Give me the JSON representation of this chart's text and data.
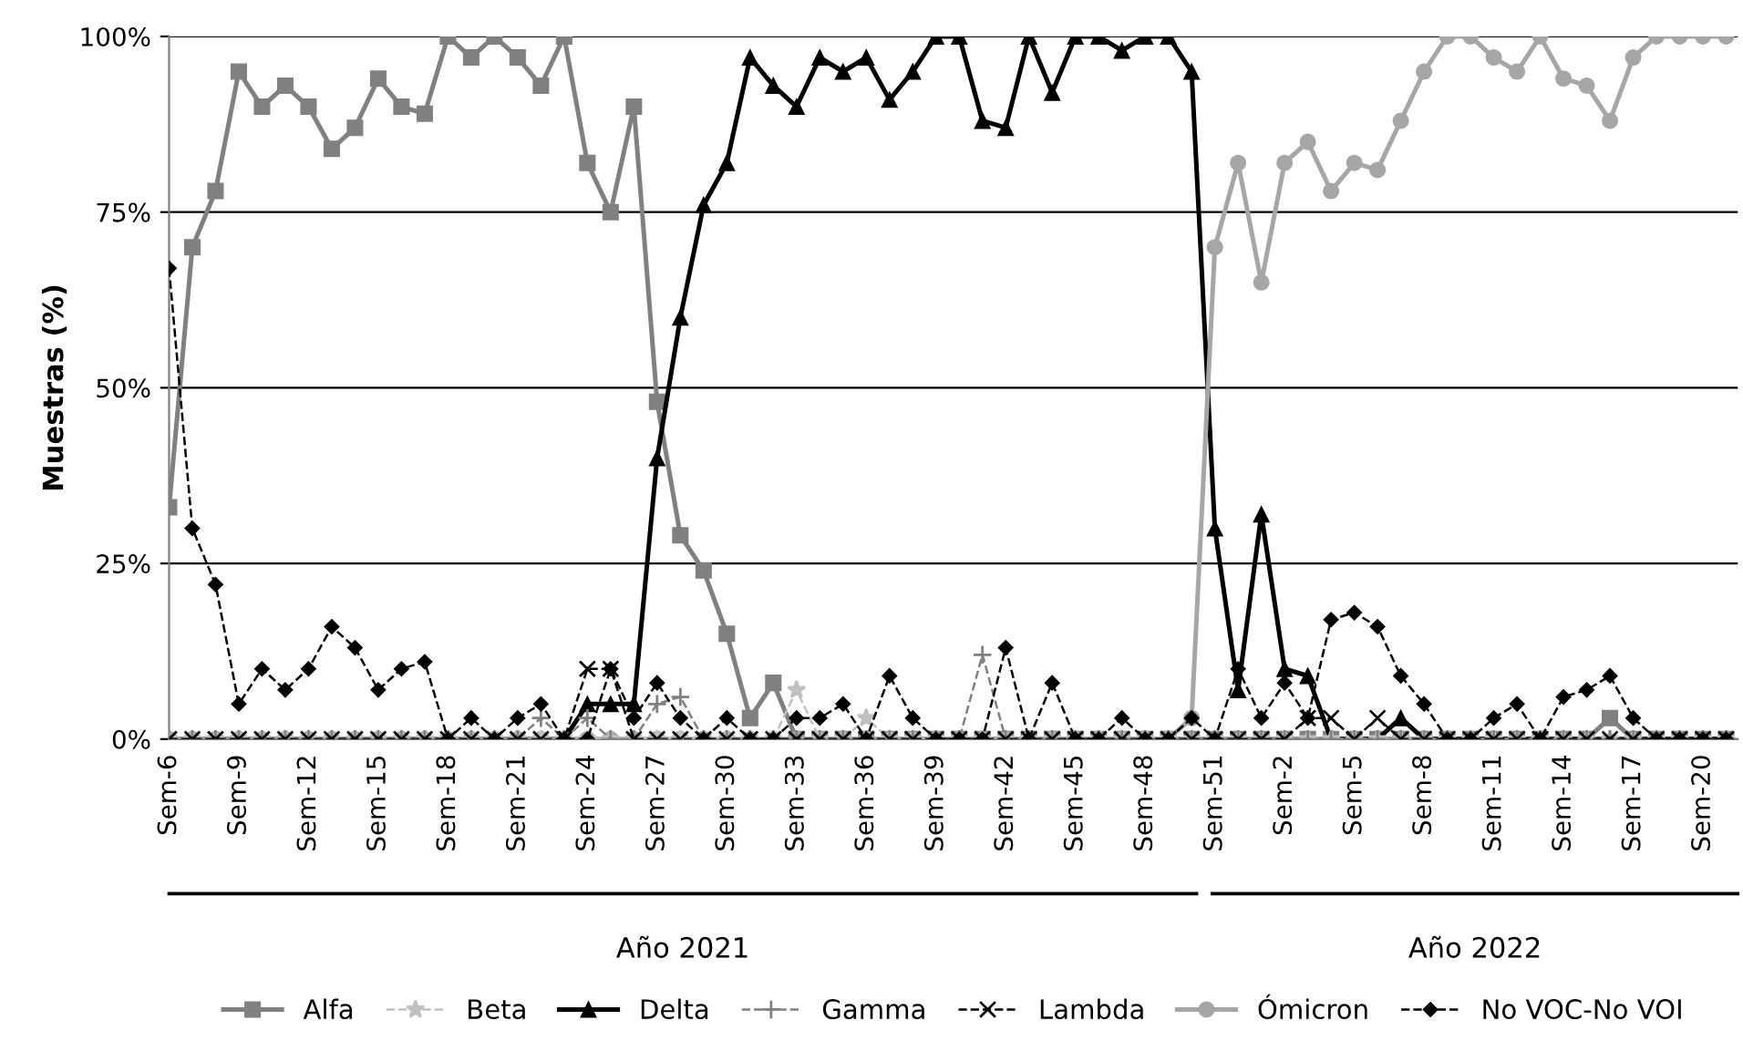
{
  "chart_data": {
    "type": "line",
    "ylabel": "Muestras (%)",
    "categories": [
      "Sem-6",
      null,
      null,
      "Sem-9",
      null,
      null,
      "Sem-12",
      null,
      null,
      "Sem-15",
      null,
      null,
      "Sem-18",
      null,
      null,
      "Sem-21",
      null,
      null,
      "Sem-24",
      null,
      null,
      "Sem-27",
      null,
      null,
      "Sem-30",
      null,
      null,
      "Sem-33",
      null,
      null,
      "Sem-36",
      null,
      null,
      "Sem-39",
      null,
      null,
      "Sem-42",
      null,
      null,
      "Sem-45",
      null,
      null,
      "Sem-48",
      null,
      null,
      "Sem-51",
      null,
      null,
      "Sem-2",
      null,
      null,
      "Sem-5",
      null,
      null,
      "Sem-8",
      null,
      null,
      "Sem-11",
      null,
      null,
      "Sem-14",
      null,
      null,
      "Sem-17",
      null,
      null,
      "Sem-20",
      null
    ],
    "series": [
      {
        "name": "Alfa",
        "color": "#808080",
        "marker": "square",
        "line_style": "solid",
        "values": [
          33,
          70,
          78,
          95,
          90,
          93,
          90,
          84,
          87,
          94,
          90,
          89,
          100,
          97,
          100,
          97,
          93,
          100,
          82,
          75,
          90,
          48,
          29,
          24,
          15,
          3,
          8,
          0,
          0,
          0,
          0,
          0,
          0,
          0,
          0,
          0,
          0,
          0,
          0,
          0,
          0,
          0,
          0,
          0,
          0,
          0,
          0,
          0,
          0,
          0,
          0,
          0,
          0,
          0,
          0,
          0,
          0,
          0,
          0,
          0,
          0,
          0,
          3,
          0,
          0,
          0,
          0,
          0
        ]
      },
      {
        "name": "Beta",
        "color": "#c0c0c0",
        "marker": "star",
        "line_style": "dashed",
        "values": [
          0,
          0,
          0,
          0,
          0,
          0,
          0,
          0,
          0,
          0,
          0,
          0,
          0,
          0,
          0,
          0,
          0,
          0,
          0,
          0,
          0,
          0,
          0,
          0,
          0,
          0,
          0,
          7,
          0,
          0,
          3,
          0,
          0,
          0,
          0,
          0,
          0,
          0,
          0,
          0,
          0,
          0,
          0,
          0,
          0,
          0,
          0,
          0,
          0,
          0,
          0,
          0,
          0,
          0,
          0,
          0,
          0,
          0,
          0,
          0,
          0,
          0,
          0,
          0,
          0,
          0,
          0,
          0
        ]
      },
      {
        "name": "Delta",
        "color": "#000000",
        "marker": "triangle",
        "line_style": "solid",
        "values": [
          0,
          0,
          0,
          0,
          0,
          0,
          0,
          0,
          0,
          0,
          0,
          0,
          0,
          0,
          0,
          0,
          0,
          0,
          5,
          5,
          5,
          40,
          60,
          76,
          82,
          97,
          93,
          90,
          97,
          95,
          97,
          91,
          95,
          100,
          100,
          88,
          87,
          100,
          92,
          100,
          100,
          98,
          100,
          100,
          95,
          30,
          7,
          32,
          10,
          9,
          0,
          0,
          0,
          3,
          0,
          0,
          0,
          0,
          0,
          0,
          0,
          0,
          0,
          0,
          0,
          0,
          0,
          0
        ]
      },
      {
        "name": "Gamma",
        "color": "#808080",
        "marker": "plus",
        "line_style": "dashed",
        "values": [
          0,
          0,
          0,
          0,
          0,
          0,
          0,
          0,
          0,
          0,
          0,
          0,
          0,
          0,
          0,
          0,
          3,
          0,
          3,
          0,
          0,
          5,
          6,
          0,
          0,
          0,
          0,
          0,
          0,
          0,
          0,
          0,
          0,
          0,
          0,
          12,
          0,
          0,
          0,
          0,
          0,
          0,
          0,
          0,
          0,
          0,
          0,
          0,
          0,
          0,
          0,
          0,
          0,
          0,
          0,
          0,
          0,
          0,
          0,
          0,
          0,
          0,
          0,
          0,
          0,
          0,
          0,
          0
        ]
      },
      {
        "name": "Lambda",
        "color": "#000000",
        "marker": "cross",
        "line_style": "dashed",
        "values": [
          0,
          0,
          0,
          0,
          0,
          0,
          0,
          0,
          0,
          0,
          0,
          0,
          0,
          0,
          0,
          0,
          0,
          0,
          10,
          10,
          0,
          0,
          0,
          0,
          0,
          0,
          0,
          0,
          0,
          0,
          0,
          0,
          0,
          0,
          0,
          0,
          0,
          0,
          0,
          0,
          0,
          0,
          0,
          0,
          0,
          0,
          0,
          0,
          0,
          3,
          3,
          0,
          3,
          0,
          0,
          0,
          0,
          0,
          0,
          0,
          0,
          0,
          0,
          0,
          0,
          0,
          0,
          0
        ]
      },
      {
        "name": "Ómicron",
        "color": "#a6a6a6",
        "marker": "circle",
        "line_style": "solid",
        "values": [
          0,
          0,
          0,
          0,
          0,
          0,
          0,
          0,
          0,
          0,
          0,
          0,
          0,
          0,
          0,
          0,
          0,
          0,
          0,
          0,
          0,
          0,
          0,
          0,
          0,
          0,
          0,
          0,
          0,
          0,
          0,
          0,
          0,
          0,
          0,
          0,
          0,
          0,
          0,
          0,
          0,
          0,
          0,
          0,
          3,
          70,
          82,
          65,
          82,
          85,
          78,
          82,
          81,
          88,
          95,
          100,
          100,
          97,
          95,
          100,
          94,
          93,
          88,
          97,
          100,
          100,
          100,
          100
        ]
      },
      {
        "name": "No VOC-No VOI",
        "color": "#000000",
        "marker": "diamond",
        "line_style": "dashed",
        "values": [
          67,
          30,
          22,
          5,
          10,
          7,
          10,
          16,
          13,
          7,
          10,
          11,
          0,
          3,
          0,
          3,
          5,
          0,
          0,
          10,
          3,
          8,
          3,
          0,
          3,
          0,
          0,
          3,
          3,
          5,
          0,
          9,
          3,
          0,
          0,
          0,
          13,
          0,
          8,
          0,
          0,
          3,
          0,
          0,
          3,
          0,
          10,
          3,
          8,
          3,
          17,
          18,
          16,
          9,
          5,
          0,
          0,
          3,
          5,
          0,
          6,
          7,
          9,
          3,
          0,
          0,
          0,
          0
        ]
      }
    ],
    "ylim": [
      0,
      100
    ],
    "yticks": [
      {
        "value": 0,
        "label": "0%"
      },
      {
        "value": 25,
        "label": "25%"
      },
      {
        "value": 50,
        "label": "50%"
      },
      {
        "value": 75,
        "label": "75%"
      },
      {
        "value": 100,
        "label": "100%"
      }
    ],
    "grid": "y",
    "legend": "bottom",
    "annotations": [
      "Año 2021",
      "Año 2022"
    ]
  }
}
